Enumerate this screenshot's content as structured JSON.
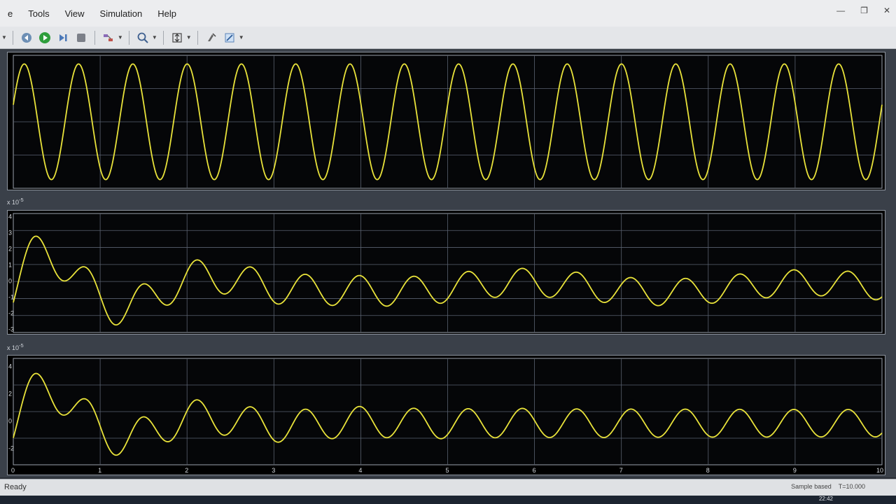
{
  "menubar": {
    "items": [
      "e",
      "Tools",
      "View",
      "Simulation",
      "Help"
    ]
  },
  "toolbar": {
    "icons": [
      "back-icon",
      "run-icon",
      "step-forward-icon",
      "stop-icon",
      "highlight-icon",
      "zoom-icon",
      "scale-axes-icon",
      "style-icon",
      "edit-icon"
    ]
  },
  "scopes": [
    {
      "exponent": "",
      "y_ticks": [],
      "x_ticks": [],
      "chart_data": {
        "type": "line",
        "title": "",
        "xlim": [
          0,
          10
        ],
        "ylim": [
          -1.15,
          1.15
        ],
        "grid": true,
        "series": [
          {
            "color": "#e8e23a",
            "wave": {
              "amp": 1.0,
              "freq": 1.6,
              "phase": 0.0,
              "decay": 0.0
            }
          }
        ]
      }
    },
    {
      "exponent": "x 10",
      "exponent_power": "-5",
      "y_ticks": [
        "4",
        "3",
        "2",
        "1",
        "0",
        "-1",
        "-2",
        "-3"
      ],
      "x_ticks": [],
      "chart_data": {
        "type": "line",
        "title": "",
        "xlim": [
          0,
          10
        ],
        "ylim": [
          -3.2,
          4.2
        ],
        "grid": true,
        "series": [
          {
            "color": "#e8e23a"
          }
        ]
      }
    },
    {
      "exponent": "x 10",
      "exponent_power": "-5",
      "y_ticks": [
        "4",
        "2",
        "0",
        "-2"
      ],
      "x_ticks": [
        "0",
        "1",
        "2",
        "3",
        "4",
        "5",
        "6",
        "7",
        "8",
        "9",
        "10"
      ],
      "chart_data": {
        "type": "line",
        "title": "",
        "xlim": [
          0,
          10
        ],
        "ylim": [
          -3.2,
          4.6
        ],
        "grid": true,
        "series": [
          {
            "color": "#e8e23a"
          }
        ]
      }
    }
  ],
  "status": {
    "left": "Ready",
    "sample": "Sample based",
    "time": "T=10.000"
  },
  "taskbar": {
    "clock": "22:42"
  }
}
